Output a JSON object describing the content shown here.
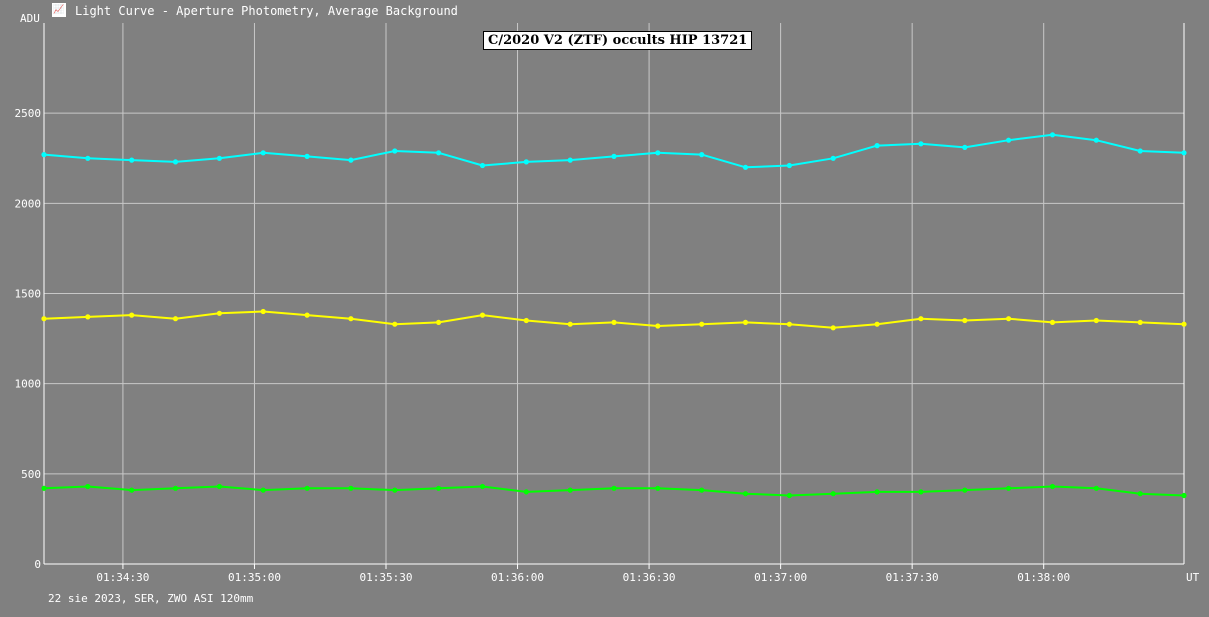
{
  "window": {
    "title": "Light Curve - Aperture Photometry, Average Background",
    "icon": "chart-app-icon"
  },
  "footer": "22 sie 2023, SER, ZWO ASI 120mm",
  "colors": {
    "background": "#808080",
    "grid": "#c8c8c8",
    "axis": "#ffffff",
    "series_1": "#00ffff",
    "series_2": "#ffff00",
    "series_3": "#00ff00"
  },
  "chart_data": {
    "type": "line",
    "title": "C/2020 V2 (ZTF) occults HIP 13721",
    "ylabel": "ADU",
    "xlabel": "UT",
    "ylim": [
      0,
      3000
    ],
    "yticks": [
      0,
      500,
      1000,
      1500,
      2000,
      2500
    ],
    "xlim": [
      "01:34:12",
      "01:38:32"
    ],
    "xticks": [
      "01:34:30",
      "01:35:00",
      "01:35:30",
      "01:36:00",
      "01:36:30",
      "01:37:00",
      "01:37:30",
      "01:38:00"
    ],
    "grid": true,
    "markers": true,
    "series": [
      {
        "color": "#00ffff",
        "x": [
          "01:34:12",
          "01:34:22",
          "01:34:32",
          "01:34:42",
          "01:34:52",
          "01:35:02",
          "01:35:12",
          "01:35:22",
          "01:35:32",
          "01:35:42",
          "01:35:52",
          "01:36:02",
          "01:36:12",
          "01:36:22",
          "01:36:32",
          "01:36:42",
          "01:36:52",
          "01:37:02",
          "01:37:12",
          "01:37:22",
          "01:37:32",
          "01:37:42",
          "01:37:52",
          "01:38:02",
          "01:38:12",
          "01:38:22",
          "01:38:32"
        ],
        "values": [
          2270,
          2250,
          2240,
          2230,
          2250,
          2280,
          2260,
          2240,
          2290,
          2280,
          2210,
          2230,
          2240,
          2260,
          2280,
          2270,
          2200,
          2210,
          2250,
          2320,
          2330,
          2310,
          2350,
          2380,
          2350,
          2290,
          2280
        ]
      },
      {
        "color": "#ffff00",
        "x": [
          "01:34:12",
          "01:34:22",
          "01:34:32",
          "01:34:42",
          "01:34:52",
          "01:35:02",
          "01:35:12",
          "01:35:22",
          "01:35:32",
          "01:35:42",
          "01:35:52",
          "01:36:02",
          "01:36:12",
          "01:36:22",
          "01:36:32",
          "01:36:42",
          "01:36:52",
          "01:37:02",
          "01:37:12",
          "01:37:22",
          "01:37:32",
          "01:37:42",
          "01:37:52",
          "01:38:02",
          "01:38:12",
          "01:38:22",
          "01:38:32"
        ],
        "values": [
          1360,
          1370,
          1380,
          1360,
          1390,
          1400,
          1380,
          1360,
          1330,
          1340,
          1380,
          1350,
          1330,
          1340,
          1320,
          1330,
          1340,
          1330,
          1310,
          1330,
          1360,
          1350,
          1360,
          1340,
          1350,
          1340,
          1330
        ]
      },
      {
        "color": "#00ff00",
        "x": [
          "01:34:12",
          "01:34:22",
          "01:34:32",
          "01:34:42",
          "01:34:52",
          "01:35:02",
          "01:35:12",
          "01:35:22",
          "01:35:32",
          "01:35:42",
          "01:35:52",
          "01:36:02",
          "01:36:12",
          "01:36:22",
          "01:36:32",
          "01:36:42",
          "01:36:52",
          "01:37:02",
          "01:37:12",
          "01:37:22",
          "01:37:32",
          "01:37:42",
          "01:37:52",
          "01:38:02",
          "01:38:12",
          "01:38:22",
          "01:38:32"
        ],
        "values": [
          420,
          430,
          410,
          420,
          430,
          410,
          420,
          420,
          410,
          420,
          430,
          400,
          410,
          420,
          420,
          410,
          390,
          380,
          390,
          400,
          400,
          410,
          420,
          430,
          420,
          390,
          380
        ]
      }
    ]
  }
}
